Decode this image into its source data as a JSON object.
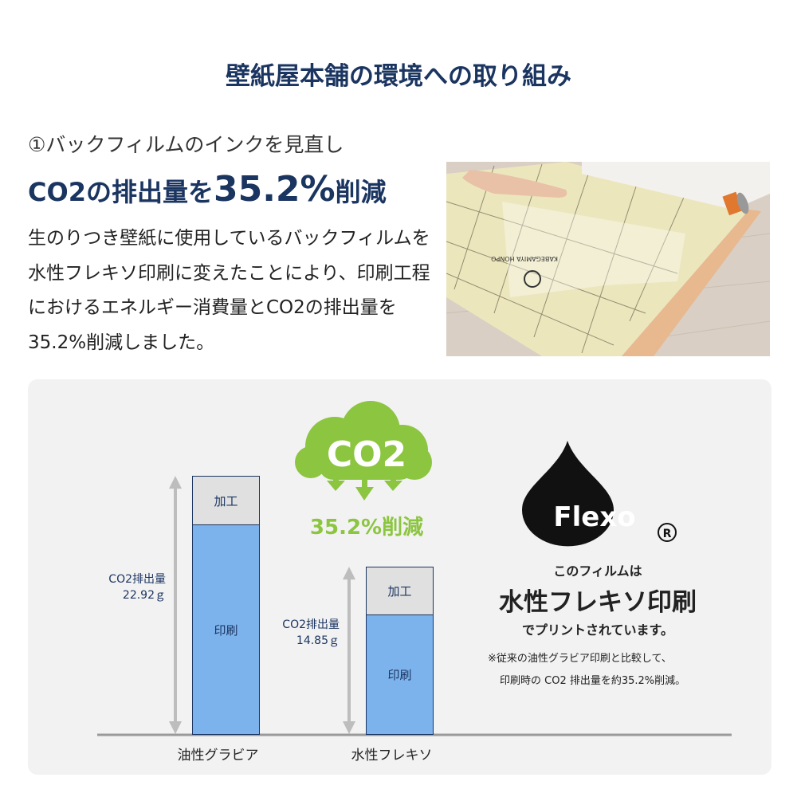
{
  "title": "壁紙屋本舗の環境への取り組み",
  "section": {
    "subtitle": "①バックフィルムのインクを見直し",
    "headline_pre": "CO2の排出量を",
    "headline_value": "35.2%",
    "headline_post": "削減",
    "body": "生のりつき壁紙に使用しているバックフィルムを水性フレキソ印刷に変えたことにより、印刷工程におけるエネルギー消費量とCO2の排出量を35.2%削減しました。"
  },
  "photo": {
    "film_print": "KABEGAMIYA HONPO"
  },
  "badge": {
    "cloud_text": "CO2",
    "reduction": "35.2%削減",
    "color": "#8cc540"
  },
  "flexo": {
    "logo_text": "Flexo",
    "registered": "®",
    "line1": "このフィルムは",
    "line2": "水性フレキソ印刷",
    "line3": "でプリントされています。",
    "note1": "※従来の油性グラビア印刷と比較して、",
    "note2": "印刷時の CO2 排出量を約35.2%削減。"
  },
  "chart_data": {
    "type": "bar",
    "stacked": true,
    "categories": [
      "油性グラビア",
      "水性フレキソ"
    ],
    "series": [
      {
        "name": "印刷",
        "values": [
          18.6,
          10.6
        ],
        "color": "#7db3ec"
      },
      {
        "name": "加工",
        "values": [
          4.32,
          4.25
        ],
        "color": "#e0e0e0"
      }
    ],
    "totals_label": [
      "CO2排出量",
      "CO2排出量"
    ],
    "totals": [
      "22.92ｇ",
      "14.85ｇ"
    ],
    "total_values": [
      22.92,
      14.85
    ]
  }
}
